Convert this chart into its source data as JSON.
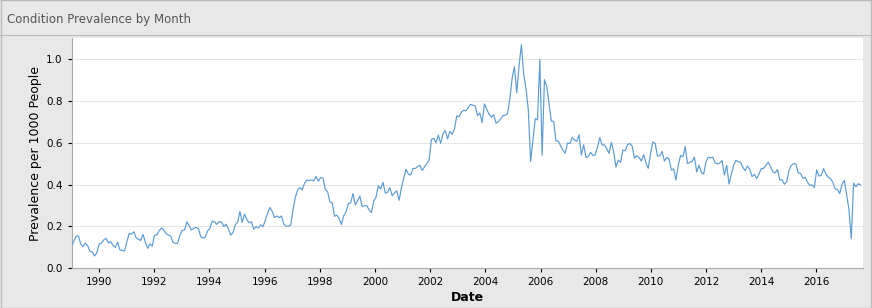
{
  "title": "Condition Prevalence by Month",
  "xlabel": "Date",
  "ylabel": "Prevalence per 1000 People",
  "line_color": "#5B9BD5",
  "background_color": "#E8E8E8",
  "plot_background": "#FFFFFF",
  "border_color": "#BBBBBB",
  "header_color": "#E0E0E0",
  "ylim": [
    0,
    1.1
  ],
  "yticks": [
    0,
    0.2,
    0.4,
    0.6,
    0.8,
    1.0
  ],
  "x_start_year": 1989.0,
  "x_end_year": 2017.7,
  "xtick_years": [
    1990,
    1992,
    1994,
    1996,
    1998,
    2000,
    2002,
    2004,
    2006,
    2008,
    2010,
    2012,
    2014,
    2016
  ],
  "title_fontsize": 8.5,
  "axis_label_fontsize": 9,
  "tick_fontsize": 7.5
}
